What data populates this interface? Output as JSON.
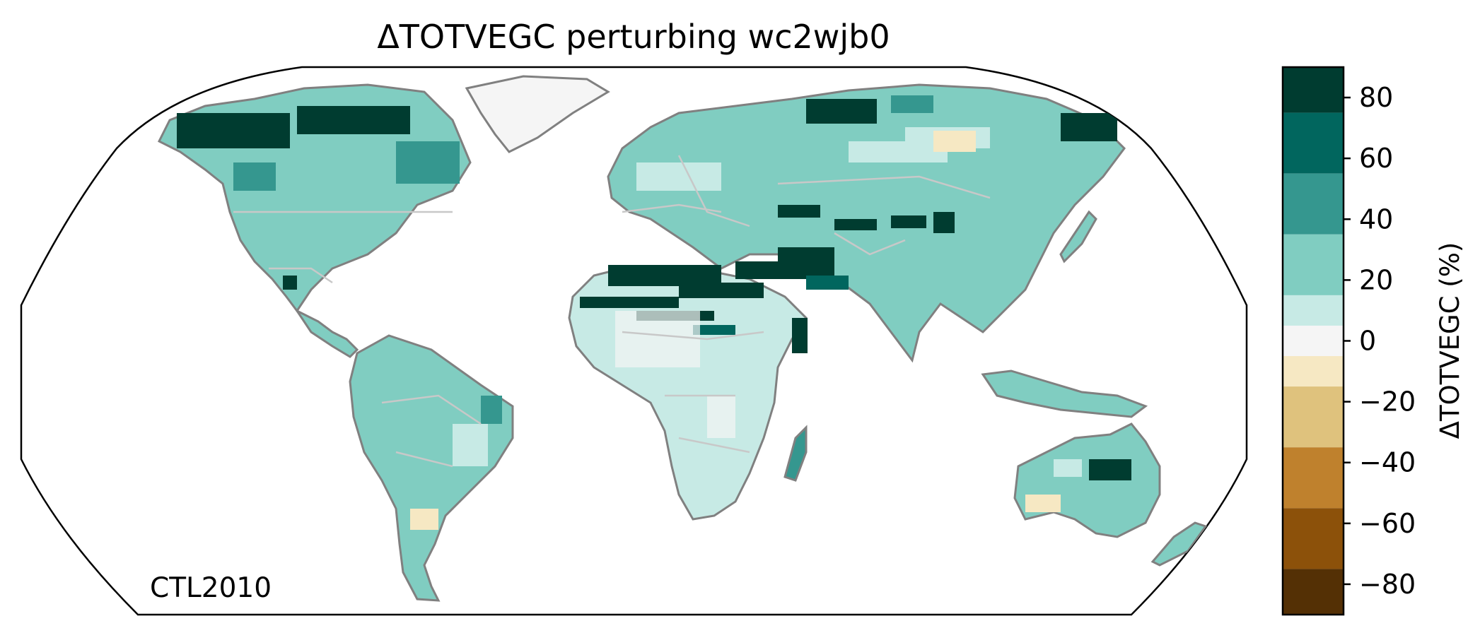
{
  "title": "ΔTOTVEGC perturbing wc2wjb0",
  "corner_label": "CTL2010",
  "colorbar": {
    "label": "ΔTOTVEGC (%)",
    "range": [
      -90,
      90
    ],
    "ticks": [
      80,
      60,
      40,
      20,
      0,
      -20,
      -40,
      -60,
      -80
    ],
    "tick_labels": [
      "80",
      "60",
      "40",
      "20",
      "0",
      "−20",
      "−40",
      "−60",
      "−80"
    ],
    "bins": [
      {
        "from": 75,
        "to": 90,
        "color": "#003c30"
      },
      {
        "from": 55,
        "to": 75,
        "color": "#01665e"
      },
      {
        "from": 35,
        "to": 55,
        "color": "#35978f"
      },
      {
        "from": 15,
        "to": 35,
        "color": "#80cdc1"
      },
      {
        "from": 5,
        "to": 15,
        "color": "#c7eae5"
      },
      {
        "from": -5,
        "to": 5,
        "color": "#f5f5f5"
      },
      {
        "from": -15,
        "to": -5,
        "color": "#f6e8c3"
      },
      {
        "from": -35,
        "to": -15,
        "color": "#dfc27d"
      },
      {
        "from": -55,
        "to": -35,
        "color": "#bf812d"
      },
      {
        "from": -75,
        "to": -55,
        "color": "#8c510a"
      },
      {
        "from": -90,
        "to": -75,
        "color": "#543005"
      }
    ]
  },
  "map": {
    "projection": "robinson",
    "coastline_color": "#808080",
    "border_color": "#c8c8c8",
    "ocean_color": "#ffffff"
  }
}
